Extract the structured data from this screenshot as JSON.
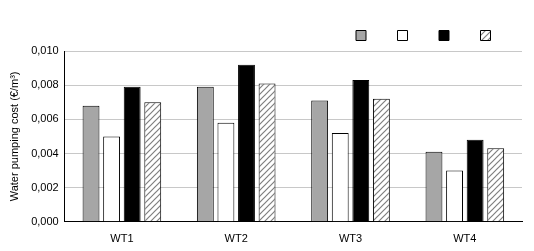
{
  "chart_data": {
    "type": "bar",
    "y_label": "Water pumping cost (€/m³)",
    "categories": [
      "WT1",
      "WT2",
      "WT3",
      "WT4"
    ],
    "series": [
      {
        "color": "#a6a6a6",
        "values": [
          0.0068,
          0.0079,
          0.0071,
          0.0041
        ]
      },
      {
        "color": "#ffffff",
        "values": [
          0.005,
          0.0058,
          0.0052,
          0.003
        ]
      },
      {
        "color": "#000000",
        "values": [
          0.0079,
          0.0092,
          0.0083,
          0.0048
        ]
      },
      {
        "color": "#7f7f7f",
        "line_style": "hatched",
        "values": [
          0.007,
          0.0081,
          0.0072,
          0.0043
        ]
      }
    ],
    "ylim": [
      0,
      0.01
    ],
    "yticks": [
      {
        "value": 0,
        "label": "0,000"
      },
      {
        "value": 0.002,
        "label": "0,002"
      },
      {
        "value": 0.004,
        "label": "0,004"
      },
      {
        "value": 0.006,
        "label": "0,006"
      },
      {
        "value": 0.008,
        "label": "0,008"
      },
      {
        "value": 0.01,
        "label": "0,010"
      }
    ],
    "grid": true,
    "legend": "top-right"
  }
}
